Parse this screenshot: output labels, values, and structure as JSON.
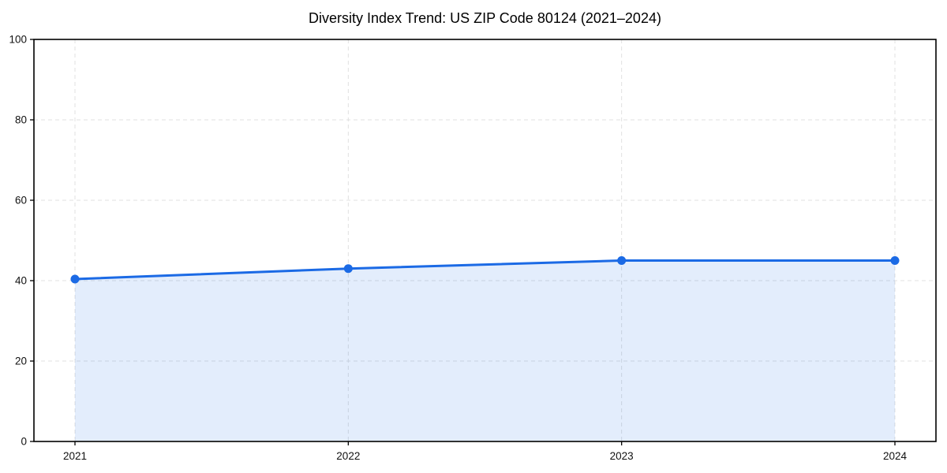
{
  "chart_data": {
    "type": "line",
    "title": "Diversity Index Trend: US ZIP Code 80124 (2021–2024)",
    "categories": [
      "2021",
      "2022",
      "2023",
      "2024"
    ],
    "series": [
      {
        "name": "Diversity Index",
        "values": [
          40.4,
          43.0,
          45.0,
          45.0
        ]
      }
    ],
    "xlabel": "",
    "ylabel": "",
    "ylim": [
      0,
      100
    ],
    "yticks": [
      0,
      20,
      40,
      60,
      80,
      100
    ],
    "grid": true,
    "grid_style": "dashed",
    "legend_position": "none",
    "area_fill": true,
    "marker": "circle",
    "colors": {
      "line": "#1b6ae5",
      "fill": "rgba(27,106,229,0.12)",
      "grid": "#e0e0e0",
      "axis": "#000000",
      "tick_label": "#111111",
      "title": "#000000",
      "background": "#ffffff"
    }
  }
}
